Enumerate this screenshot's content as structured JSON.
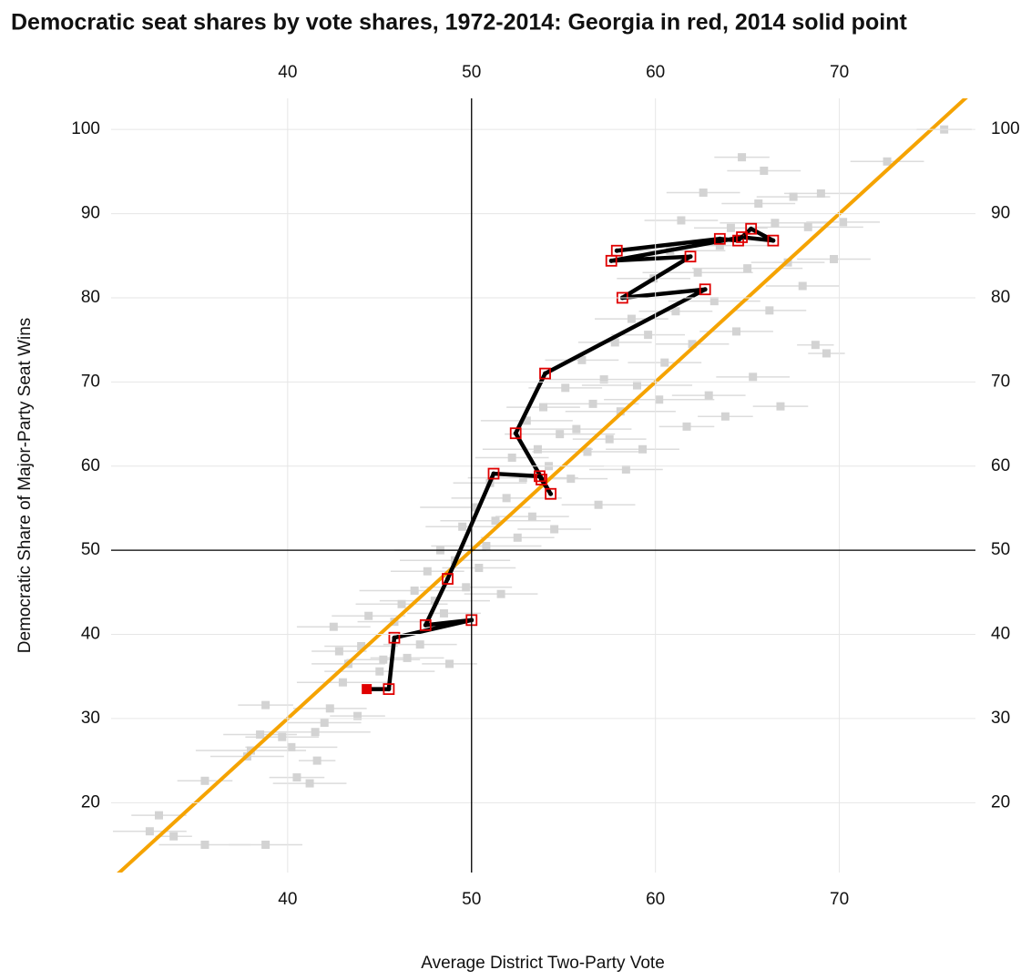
{
  "chart_data": {
    "type": "scatter",
    "title": "Democratic seat shares by vote shares, 1972-2014: Georgia in red, 2014 solid point",
    "x_label": "Average District Two-Party Vote",
    "y_label": "Democratic Share of Major-Party Seat Wins",
    "xlim": [
      30.4,
      77.4
    ],
    "ylim": [
      11.7,
      103.7
    ],
    "xticks": [
      40,
      50,
      60,
      70
    ],
    "yticks": [
      20,
      30,
      40,
      50,
      60,
      70,
      80,
      90,
      100
    ],
    "grid": true,
    "reference_x": 50,
    "reference_y": 50,
    "series": [
      {
        "type": "scatter",
        "color": "#d3d3d3",
        "x": [
          32.5,
          33,
          33.8,
          35.5,
          38.8,
          35.5,
          37.8,
          38,
          38.5,
          38.8,
          39.7,
          40.2,
          40.5,
          41.2,
          41.5,
          41.6,
          42,
          42.3,
          42.8,
          42.5,
          43,
          43.3,
          43.8,
          44,
          44.4,
          45,
          45.2,
          45.8,
          46.2,
          46.5,
          46.9,
          47.2,
          47.6,
          48,
          48.3,
          48.5,
          48.8,
          49.1,
          49.5,
          49.7,
          50.2,
          50.4,
          50.8,
          51,
          51.3,
          51.6,
          51.9,
          52.2,
          52.5,
          52.8,
          53,
          53.3,
          53.6,
          53.9,
          54.2,
          54.5,
          54.8,
          55.1,
          55.4,
          55.7,
          56,
          56.3,
          56.6,
          56.9,
          57.2,
          57.5,
          57.8,
          58.1,
          58.4,
          58.7,
          59,
          59.3,
          59.6,
          59.9,
          60.2,
          60.5,
          60.8,
          61.1,
          61.4,
          61.7,
          62,
          62.3,
          62.6,
          62.9,
          63.2,
          63.5,
          63.8,
          64.1,
          64.4,
          64.7,
          65,
          65.3,
          65.6,
          65.9,
          66.2,
          66.5,
          66.8,
          67.2,
          67.5,
          68,
          68.3,
          68.7,
          69,
          69.3,
          69.7,
          70.2,
          72.6,
          75.7
        ],
        "values": [
          16.6,
          18.5,
          16,
          15,
          15,
          22.6,
          25.5,
          26.2,
          28.1,
          31.6,
          27.8,
          26.6,
          23,
          22.3,
          28.4,
          25,
          29.5,
          31.2,
          38,
          40.9,
          34.3,
          36.5,
          30.3,
          38.6,
          42.2,
          35.6,
          37,
          41.5,
          43.6,
          37.2,
          45.2,
          38.8,
          47.5,
          44,
          50,
          42.5,
          36.5,
          48.8,
          52.8,
          45.6,
          55.1,
          47.9,
          50.5,
          58,
          53.5,
          44.8,
          56.2,
          61,
          51.5,
          58.6,
          65.4,
          54,
          62,
          67,
          60,
          52.5,
          63.8,
          69.3,
          58.5,
          64.4,
          72.6,
          61.7,
          67.4,
          55.4,
          70.3,
          63.2,
          74.7,
          66.5,
          59.6,
          77.5,
          69.6,
          62,
          75.6,
          82.3,
          67.9,
          72.3,
          85.6,
          78.4,
          89.2,
          64.7,
          74.5,
          83,
          92.5,
          68.4,
          79.6,
          86.2,
          65.9,
          88.3,
          76,
          96.7,
          83.5,
          70.6,
          91.2,
          95.1,
          78.5,
          88.9,
          67.1,
          84.2,
          92,
          81.4,
          88.4,
          74.4,
          92.4,
          73.4,
          84.6,
          89,
          96.2,
          100
        ],
        "xerr": [
          2,
          1.5,
          1,
          2.5,
          2,
          1.5,
          2,
          3,
          2,
          1.5,
          2,
          2.5,
          1.5,
          2,
          3,
          1,
          2,
          2,
          1.5,
          2,
          2.5,
          2,
          1.5,
          2,
          2,
          3,
          2,
          2,
          2.5,
          2,
          3,
          2,
          2,
          3,
          2.5,
          2,
          1.5,
          3,
          2,
          2.5,
          3,
          2,
          3,
          2,
          3,
          2,
          3,
          2,
          2,
          3,
          2.5,
          2,
          3,
          2,
          3,
          2,
          3,
          2,
          2,
          3,
          2,
          3,
          2.5,
          2,
          3,
          2,
          2,
          3,
          2,
          2,
          3,
          2,
          2,
          2,
          3,
          2,
          3,
          2,
          2,
          1.5,
          2,
          3,
          2,
          2,
          2.5,
          3,
          1.5,
          2,
          2,
          1.5,
          3,
          2,
          2,
          2,
          2,
          3,
          1.5,
          2,
          2,
          2,
          3,
          1,
          2,
          1,
          2,
          2,
          2,
          1.5
        ]
      },
      {
        "type": "fit",
        "color": "#f5a300",
        "x": [
          30,
          77.5
        ],
        "values": [
          10,
          105
        ]
      },
      {
        "type": "path",
        "color": "#000000",
        "marker_color": "#e00000",
        "highlight_last": true,
        "x": [
          57.9,
          63.5,
          64.5,
          65.2,
          66.4,
          64.7,
          57.6,
          61.9,
          58.2,
          62.7,
          54.0,
          52.4,
          54.3,
          53.8,
          53.7,
          51.2,
          48.7,
          47.5,
          50.0,
          45.8,
          45.5,
          44.3
        ],
        "values": [
          85.6,
          87.0,
          86.8,
          88.2,
          86.8,
          87.2,
          84.4,
          84.9,
          80.0,
          81.0,
          71.0,
          63.9,
          56.7,
          58.4,
          58.8,
          59.1,
          46.6,
          41.1,
          41.7,
          39.6,
          33.5,
          33.5
        ]
      }
    ]
  }
}
